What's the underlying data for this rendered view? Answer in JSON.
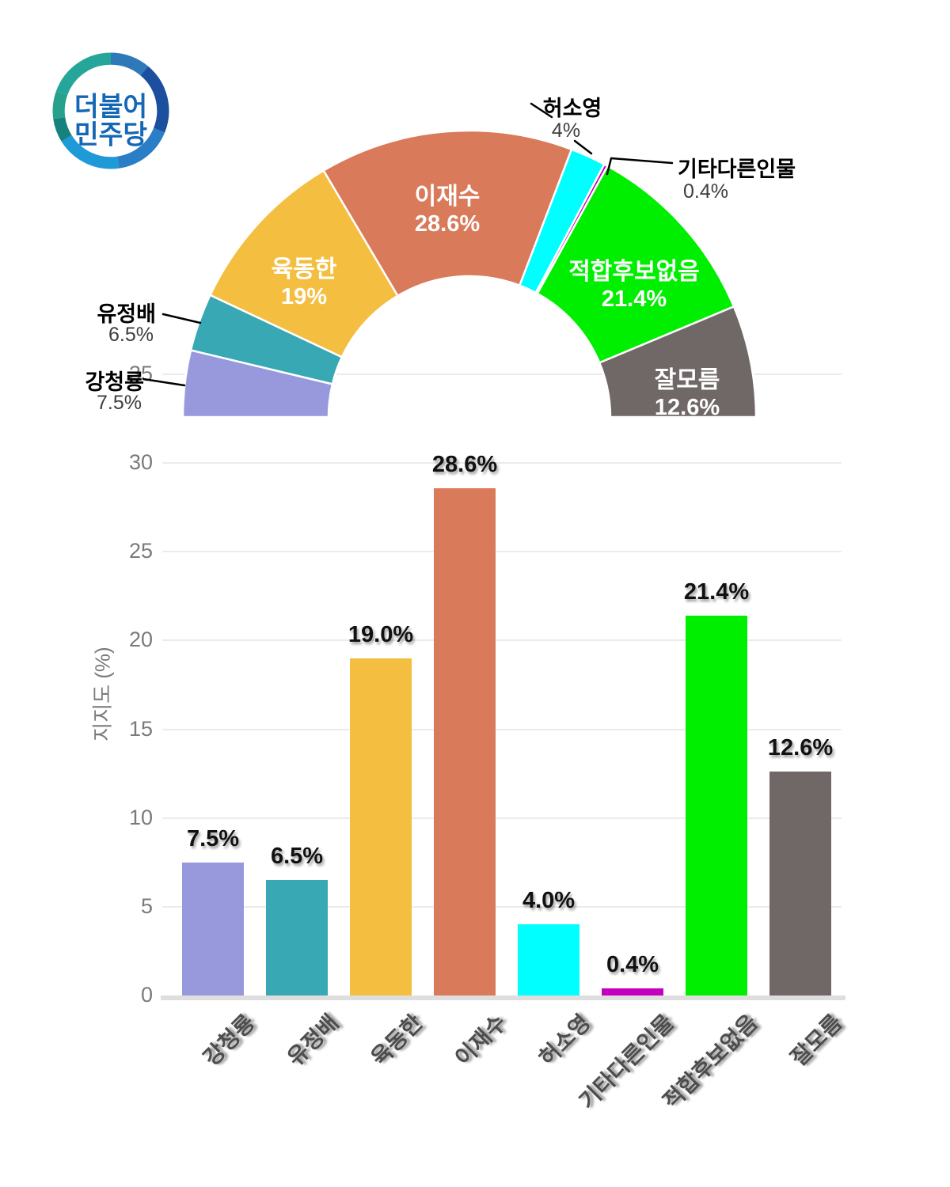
{
  "logo": {
    "line1": "더불어",
    "line2": "민주당",
    "text_color": "#1467b4",
    "ring_colors": [
      "#26a69b",
      "#2e7ab8",
      "#1d4f9f",
      "#2a7ec6",
      "#1f9ad8",
      "#17827d",
      "#27a08c"
    ]
  },
  "chart_data": [
    {
      "type": "pie",
      "variant": "half-donut",
      "categories": [
        "강청룡",
        "유정배",
        "육동한",
        "이재수",
        "허소영",
        "기타다른인물",
        "적합후보없음",
        "잘모름"
      ],
      "values": [
        7.5,
        6.5,
        19.0,
        28.6,
        4.0,
        0.4,
        21.4,
        12.6
      ],
      "colors": [
        "#9799dc",
        "#37a8b4",
        "#f4bf41",
        "#d97a5a",
        "#00ffff",
        "#c400be",
        "#00ef00",
        "#6f6866"
      ],
      "pct_labels": [
        "7.5%",
        "6.5%",
        "19%",
        "28.6%",
        "4%",
        "0.4%",
        "21.4%",
        "12.6%"
      ],
      "label_placement": [
        "outside",
        "outside",
        "inside",
        "inside",
        "outside",
        "outside",
        "inside",
        "inside"
      ],
      "legend_position": "none",
      "grid": false
    },
    {
      "type": "bar",
      "categories": [
        "강청룡",
        "유정배",
        "육동한",
        "이재수",
        "허소영",
        "기타다른인물",
        "적합후보없음",
        "잘모름"
      ],
      "values": [
        7.5,
        6.5,
        19.0,
        28.6,
        4.0,
        0.4,
        21.4,
        12.6
      ],
      "colors": [
        "#9799dc",
        "#37a8b4",
        "#f4bf41",
        "#d97a5a",
        "#00ffff",
        "#c400be",
        "#00ef00",
        "#6f6866"
      ],
      "value_labels": [
        "7.5%",
        "6.5%",
        "19.0%",
        "28.6%",
        "4.0%",
        "0.4%",
        "21.4%",
        "12.6%"
      ],
      "xlabel": "",
      "ylabel": "지지도 (%)",
      "yticks": [
        0,
        5,
        10,
        15,
        20,
        25,
        30,
        35
      ],
      "ylim": [
        0,
        35
      ],
      "grid": true,
      "legend_position": "none"
    }
  ]
}
